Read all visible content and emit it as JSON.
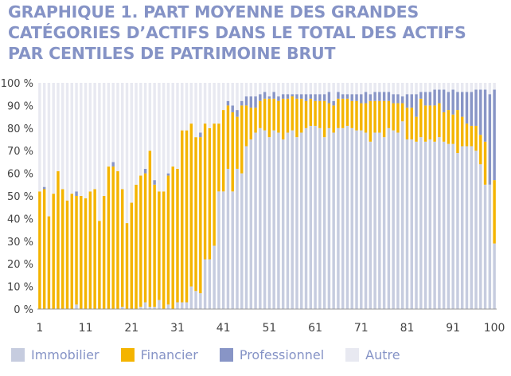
{
  "colors": {
    "title": "#8593c6",
    "immobilier": "#c6ccdf",
    "financier": "#f4b400",
    "professionnel": "#8895c6",
    "autre": "#e8e9f1",
    "axis_text": "#444444"
  },
  "chart_data": {
    "type": "bar",
    "stacked": true,
    "title_lines": [
      "GRAPHIQUE 1. PART MOYENNE DES GRANDES",
      "CATÉGORIES D’ACTIFS DANS LE TOTAL DES ACTIFS",
      "PAR CENTILES DE PATRIMOINE BRUT"
    ],
    "x_range": [
      1,
      100
    ],
    "x_tick_labels": [
      "1",
      "11",
      "21",
      "31",
      "41",
      "51",
      "61",
      "71",
      "81",
      "91",
      "100"
    ],
    "y_range": [
      0,
      100
    ],
    "y_tick_labels": [
      "0 %",
      "10 %",
      "20 %",
      "30 %",
      "40 %",
      "50 %",
      "60 %",
      "70 %",
      "80 %",
      "90 %",
      "100 %"
    ],
    "legend_position": "bottom",
    "series": [
      {
        "name": "Immobilier",
        "values": [
          0,
          0,
          0,
          0,
          0,
          0,
          0,
          0,
          2,
          0,
          0,
          0,
          0,
          0,
          0,
          0,
          0,
          0,
          1,
          0,
          0,
          0,
          1,
          3,
          1,
          1,
          4,
          0,
          2,
          0,
          3,
          3,
          3,
          10,
          8,
          7,
          22,
          22,
          28,
          52,
          52,
          62,
          52,
          62,
          60,
          72,
          75,
          78,
          80,
          79,
          76,
          79,
          78,
          75,
          78,
          79,
          76,
          78,
          80,
          81,
          81,
          80,
          76,
          80,
          78,
          80,
          80,
          81,
          80,
          79,
          79,
          78,
          74,
          78,
          78,
          76,
          80,
          79,
          78,
          83,
          75,
          75,
          74,
          76,
          74,
          75,
          74,
          76,
          74,
          73,
          73,
          69,
          72,
          72,
          72,
          70,
          64,
          55,
          55,
          29
        ]
      },
      {
        "name": "Financier",
        "values": [
          52,
          53,
          41,
          51,
          61,
          53,
          48,
          51,
          48,
          50,
          49,
          52,
          53,
          39,
          50,
          63,
          63,
          61,
          52,
          38,
          47,
          55,
          58,
          57,
          69,
          54,
          48,
          52,
          57,
          63,
          59,
          76,
          76,
          72,
          68,
          69,
          60,
          58,
          54,
          30,
          36,
          28,
          35,
          23,
          30,
          18,
          14,
          11,
          12,
          14,
          17,
          14,
          14,
          18,
          15,
          15,
          17,
          15,
          12,
          12,
          11,
          12,
          16,
          11,
          12,
          13,
          13,
          12,
          12,
          13,
          12,
          13,
          18,
          14,
          14,
          16,
          12,
          12,
          13,
          8,
          14,
          14,
          11,
          17,
          16,
          15,
          16,
          15,
          13,
          15,
          13,
          19,
          13,
          10,
          9,
          11,
          13,
          19,
          0,
          28
        ]
      },
      {
        "name": "Professionnel",
        "values": [
          0,
          1,
          0,
          0,
          0,
          0,
          0,
          0,
          2,
          0,
          0,
          0,
          0,
          0,
          0,
          0,
          2,
          0,
          0,
          0,
          0,
          0,
          0,
          2,
          0,
          2,
          0,
          0,
          1,
          0,
          0,
          0,
          0,
          0,
          0,
          2,
          0,
          0,
          0,
          0,
          0,
          2,
          3,
          3,
          2,
          4,
          5,
          5,
          3,
          3,
          1,
          3,
          2,
          2,
          2,
          1,
          2,
          2,
          3,
          2,
          3,
          3,
          3,
          5,
          2,
          3,
          2,
          2,
          3,
          3,
          4,
          5,
          3,
          4,
          4,
          4,
          4,
          4,
          4,
          3,
          6,
          6,
          10,
          3,
          6,
          6,
          7,
          6,
          10,
          8,
          11,
          8,
          11,
          14,
          15,
          16,
          20,
          23,
          40,
          40
        ]
      },
      {
        "name": "Autre",
        "values": [
          48,
          46,
          59,
          49,
          39,
          47,
          52,
          49,
          48,
          50,
          51,
          48,
          47,
          61,
          50,
          37,
          35,
          39,
          47,
          62,
          53,
          45,
          41,
          38,
          30,
          43,
          48,
          48,
          40,
          37,
          38,
          21,
          21,
          18,
          24,
          22,
          18,
          20,
          18,
          18,
          12,
          8,
          10,
          12,
          8,
          6,
          6,
          6,
          5,
          4,
          6,
          4,
          6,
          5,
          5,
          5,
          5,
          5,
          5,
          5,
          5,
          5,
          5,
          4,
          8,
          4,
          5,
          5,
          5,
          5,
          5,
          4,
          5,
          4,
          4,
          4,
          4,
          5,
          5,
          6,
          5,
          5,
          5,
          4,
          4,
          4,
          3,
          3,
          3,
          4,
          3,
          4,
          4,
          4,
          4,
          3,
          3,
          3,
          5,
          3
        ]
      }
    ]
  }
}
